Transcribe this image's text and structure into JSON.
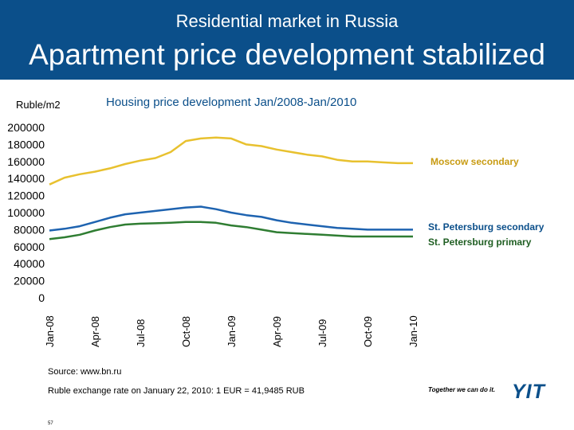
{
  "header": {
    "supertitle": "Residential market in Russia",
    "title": "Apartment price development stabilized",
    "background": "#0b4f8a"
  },
  "chart_data": {
    "type": "line",
    "title": "Housing price development Jan/2008-Jan/2010",
    "ylabel": "Ruble/m2",
    "ylim": [
      0,
      200000
    ],
    "yticks": [
      "200000",
      "180000",
      "160000",
      "140000",
      "120000",
      "100000",
      "80000",
      "60000",
      "40000",
      "20000",
      "0"
    ],
    "xticks": [
      "Jan-08",
      "Apr-08",
      "Jul-08",
      "Oct-08",
      "Jan-09",
      "Apr-09",
      "Jul-09",
      "Oct-09",
      "Jan-10"
    ],
    "x_months": [
      0,
      1,
      2,
      3,
      4,
      5,
      6,
      7,
      8,
      9,
      10,
      11,
      12,
      13,
      14,
      15,
      16,
      17,
      18,
      19,
      20,
      21,
      22,
      23,
      24
    ],
    "grid": false,
    "series": [
      {
        "name": "Moscow secondary",
        "color": "#e8c12f",
        "values": [
          133000,
          141000,
          145000,
          148000,
          152000,
          157000,
          161000,
          164000,
          171000,
          184000,
          187000,
          188000,
          187000,
          180000,
          178000,
          174000,
          171000,
          168000,
          166000,
          162000,
          160000,
          160000,
          159000,
          158000,
          158000
        ]
      },
      {
        "name": "St. Petersburg secondary",
        "color": "#1e63b0",
        "values": [
          79000,
          81000,
          84000,
          89000,
          94000,
          98000,
          100000,
          102000,
          104000,
          106000,
          107000,
          104000,
          100000,
          97000,
          95000,
          91000,
          88000,
          86000,
          84000,
          82000,
          81000,
          80000,
          80000,
          80000,
          80000
        ]
      },
      {
        "name": "St. Petersburg primary",
        "color": "#2f7d32",
        "values": [
          69000,
          71000,
          74000,
          79000,
          83000,
          86000,
          87000,
          87500,
          88000,
          89000,
          89000,
          88000,
          85000,
          83000,
          80000,
          77000,
          76000,
          75000,
          74000,
          73000,
          72000,
          72000,
          72000,
          72000,
          72000
        ]
      }
    ]
  },
  "footer": {
    "source": "Source: www.bn.ru",
    "exchange_rate": "Ruble exchange rate on January 22, 2010: 1 EUR = 41,9485 RUB",
    "page_number": "57",
    "slogan": "Together we can do it.",
    "logo": "YIT"
  }
}
